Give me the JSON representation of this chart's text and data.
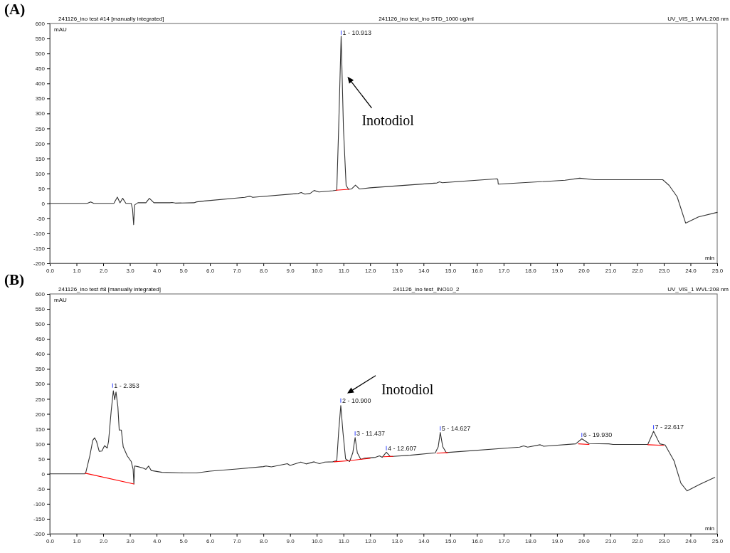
{
  "chart_data": [
    {
      "type": "line",
      "title": "(A)",
      "subtitle": "241126_ino test #14 [manually integrated]",
      "xlabel": "min",
      "ylabel": "mAU",
      "xlim": [
        0,
        25
      ],
      "ylim": [
        -200,
        600
      ],
      "xticks": [
        {
          "value": 0,
          "label": "0.0"
        },
        {
          "value": 1,
          "label": "1.0"
        },
        {
          "value": 2,
          "label": "2.0"
        },
        {
          "value": 3,
          "label": "3.0"
        },
        {
          "value": 4,
          "label": "4.0"
        },
        {
          "value": 5,
          "label": "5.0"
        },
        {
          "value": 6,
          "label": "6.0"
        },
        {
          "value": 7,
          "label": "7.0"
        },
        {
          "value": 8,
          "label": "8.0"
        },
        {
          "value": 9,
          "label": "9.0"
        },
        {
          "value": 10,
          "label": "10.0"
        },
        {
          "value": 11,
          "label": "11.0"
        },
        {
          "value": 12,
          "label": "12.0"
        },
        {
          "value": 13,
          "label": "13.0"
        },
        {
          "value": 14,
          "label": "14.0"
        },
        {
          "value": 15,
          "label": "15.0"
        },
        {
          "value": 16,
          "label": "16.0"
        },
        {
          "value": 17,
          "label": "17.0"
        },
        {
          "value": 18,
          "label": "18.0"
        },
        {
          "value": 19,
          "label": "19.0"
        },
        {
          "value": 20,
          "label": "20.0"
        },
        {
          "value": 21,
          "label": "21.0"
        },
        {
          "value": 22,
          "label": "22.0"
        },
        {
          "value": 23,
          "label": "23.0"
        },
        {
          "value": 24,
          "label": "24.0"
        },
        {
          "value": 25,
          "label": "25.0"
        }
      ],
      "yticks": [
        -200,
        -150,
        -100,
        -50,
        0,
        50,
        100,
        150,
        200,
        250,
        300,
        350,
        400,
        450,
        500,
        550,
        600
      ],
      "grid": false,
      "marker": "none",
      "line_style": "solid",
      "series": [
        {
          "color": "#333333",
          "x": [
            0,
            1.4,
            1.53,
            1.65,
            2.4,
            2.53,
            2.63,
            2.73,
            2.85,
            3.05,
            3.1,
            3.14,
            3.18,
            3.3,
            3.6,
            3.73,
            3.9,
            4.5,
            4.58,
            4.7,
            5.4,
            5.5,
            5.8,
            7.3,
            7.5,
            7.6,
            9.3,
            9.42,
            9.55,
            9.75,
            9.9,
            10.08,
            10.6,
            10.75,
            10.82,
            10.913,
            11.0,
            11.1,
            11.19,
            11.3,
            11.45,
            11.6,
            12,
            14.5,
            14.6,
            14.7,
            16.75,
            16.78,
            16.8,
            19.3,
            19.85,
            20.4,
            22.96,
            23.2,
            23.5,
            23.82,
            24.3,
            25
          ],
          "values": [
            0,
            0,
            5,
            0,
            0,
            21,
            2,
            17,
            0,
            0,
            -20,
            -71,
            -5,
            2,
            2,
            17,
            2,
            2,
            3,
            1,
            2,
            5,
            8,
            20,
            24,
            20,
            33,
            36,
            31,
            33,
            43,
            38,
            42,
            44,
            250,
            558,
            250,
            60,
            47,
            48,
            61,
            48,
            52,
            68,
            72,
            69,
            82,
            80,
            64,
            77,
            84,
            79,
            79,
            60,
            22,
            -66,
            -45,
            -30
          ]
        },
        {
          "color": "#ff0000",
          "x": [
            10.72,
            11.2
          ],
          "values": [
            44,
            47
          ]
        }
      ],
      "annotations": [
        "241126_ino test_ino STD_1000 ug/ml",
        "UV_VIS_1 WVL:208 nm",
        {
          "text": "1 - 10.913",
          "x": 10.913,
          "y": 560
        },
        "Inotodiol"
      ]
    },
    {
      "type": "line",
      "title": "(B)",
      "subtitle": "241126_ino test #8 [manually integrated]",
      "xlabel": "min",
      "ylabel": "mAU",
      "xlim": [
        0,
        25
      ],
      "ylim": [
        -200,
        600
      ],
      "xticks": [
        {
          "value": 0,
          "label": "0.0"
        },
        {
          "value": 1,
          "label": "1.0"
        },
        {
          "value": 2,
          "label": "2.0"
        },
        {
          "value": 3,
          "label": "3.0"
        },
        {
          "value": 4,
          "label": "4.0"
        },
        {
          "value": 5,
          "label": "5.0"
        },
        {
          "value": 6,
          "label": "6.0"
        },
        {
          "value": 7,
          "label": "7.0"
        },
        {
          "value": 8,
          "label": "8.0"
        },
        {
          "value": 9,
          "label": "9.0"
        },
        {
          "value": 10,
          "label": "10.0"
        },
        {
          "value": 11,
          "label": "11.0"
        },
        {
          "value": 12,
          "label": "12.0"
        },
        {
          "value": 13,
          "label": "13.0"
        },
        {
          "value": 14,
          "label": "14.0"
        },
        {
          "value": 15,
          "label": "15.0"
        },
        {
          "value": 16,
          "label": "16.0"
        },
        {
          "value": 17,
          "label": "17.0"
        },
        {
          "value": 18,
          "label": "18.0"
        },
        {
          "value": 19,
          "label": "19.0"
        },
        {
          "value": 20,
          "label": "20.0"
        },
        {
          "value": 21,
          "label": "21.0"
        },
        {
          "value": 22,
          "label": "22.0"
        },
        {
          "value": 23,
          "label": "23.0"
        },
        {
          "value": 24,
          "label": "24.0"
        },
        {
          "value": 25,
          "label": "25.0"
        }
      ],
      "yticks": [
        -200,
        -150,
        -100,
        -50,
        0,
        50,
        100,
        150,
        200,
        250,
        300,
        350,
        400,
        450,
        500,
        550,
        600
      ],
      "grid": false,
      "marker": "none",
      "line_style": "solid",
      "series": [
        {
          "color": "#333333",
          "x": [
            0,
            1.31,
            1.35,
            1.5,
            1.61,
            1.68,
            1.75,
            1.85,
            1.95,
            2.05,
            2.15,
            2.2,
            2.3,
            2.38,
            2.43,
            2.48,
            2.55,
            2.6,
            2.68,
            2.75,
            2.9,
            3.05,
            3.12,
            3.15,
            3.18,
            3.3,
            3.5,
            3.6,
            3.7,
            3.8,
            4.2,
            5.0,
            5.5,
            6.0,
            7.0,
            8.0,
            8.1,
            8.3,
            8.9,
            9.0,
            9.4,
            9.6,
            9.9,
            10.1,
            10.3,
            10.6,
            10.75,
            10.82,
            10.9,
            10.98,
            11.08,
            11.23,
            11.35,
            11.437,
            11.52,
            11.65,
            11.78,
            12.2,
            12.35,
            12.45,
            12.607,
            12.75,
            12.85,
            13.5,
            14.44,
            14.55,
            14.627,
            14.72,
            14.85,
            17.6,
            17.75,
            17.9,
            18.37,
            18.5,
            19.7,
            19.93,
            20.2,
            20.94,
            21.1,
            22.4,
            22.617,
            22.85,
            23.05,
            23.38,
            23.64,
            23.87,
            24.35,
            24.91
          ],
          "values": [
            0,
            0,
            5,
            60,
            112,
            120,
            108,
            75,
            76,
            94,
            86,
            108,
            210,
            277,
            247,
            273,
            224,
            146,
            146,
            90,
            60,
            41,
            15,
            -34,
            26,
            24,
            19,
            15,
            26,
            11,
            5,
            3,
            3,
            9,
            16,
            24,
            26,
            23,
            34,
            28,
            39,
            33,
            40,
            34,
            39,
            40,
            44,
            140,
            228,
            140,
            50,
            41,
            70,
            121,
            70,
            48,
            52,
            55,
            60,
            55,
            72,
            58,
            58,
            62,
            70,
            90,
            138,
            90,
            71,
            89,
            93,
            89,
            97,
            92,
            100,
            117,
            101,
            100,
            98,
            98,
            142,
            100,
            96,
            44,
            -31,
            -57,
            -35,
            -12
          ]
        },
        {
          "color": "#ff0000",
          "x": [
            1.33,
            3.15
          ],
          "values": [
            2,
            -34
          ]
        },
        {
          "color": "#ff0000",
          "x": [
            10.65,
            11.23,
            12.0
          ],
          "values": [
            40,
            44,
            52
          ]
        },
        {
          "color": "#ff0000",
          "x": [
            12.5,
            12.85
          ],
          "values": [
            57,
            58
          ]
        },
        {
          "color": "#ff0000",
          "x": [
            14.5,
            14.9
          ],
          "values": [
            69,
            71
          ]
        },
        {
          "color": "#ff0000",
          "x": [
            19.8,
            20.2
          ],
          "values": [
            100,
            98
          ]
        },
        {
          "color": "#ff0000",
          "x": [
            22.4,
            23.0
          ],
          "values": [
            97,
            95
          ]
        }
      ],
      "annotations": [
        "241126_ino test_INO10_2",
        "UV_VIS_1 WVL:208 nm",
        {
          "text": "1 - 2.353",
          "x": 2.353,
          "y": 285
        },
        {
          "text": "2 - 10.900",
          "x": 10.9,
          "y": 235
        },
        "Inotodiol",
        {
          "text": "3 - 11.437",
          "x": 11.437,
          "y": 125
        },
        {
          "text": "4 - 12.607",
          "x": 12.607,
          "y": 76
        },
        {
          "text": "5 - 14.627",
          "x": 14.627,
          "y": 142
        },
        {
          "text": "6 - 19.930",
          "x": 19.93,
          "y": 120
        },
        {
          "text": "7 - 22.617",
          "x": 22.617,
          "y": 146
        }
      ]
    }
  ]
}
